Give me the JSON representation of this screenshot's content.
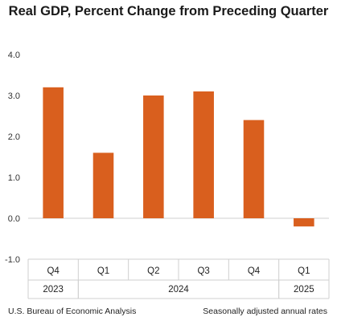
{
  "chart_data": {
    "type": "bar",
    "title": "Real GDP, Percent Change from Preceding Quarter",
    "categories": [
      "Q4",
      "Q1",
      "Q2",
      "Q3",
      "Q4",
      "Q1"
    ],
    "years": [
      {
        "label": "2023",
        "span": [
          0,
          0
        ]
      },
      {
        "label": "2024",
        "span": [
          1,
          4
        ]
      },
      {
        "label": "2025",
        "span": [
          5,
          5
        ]
      }
    ],
    "values": [
      3.2,
      1.6,
      3.0,
      3.1,
      2.4,
      -0.2
    ],
    "ylim": [
      -1.0,
      4.0
    ],
    "yticks": [
      "4.0",
      "3.0",
      "2.0",
      "1.0",
      "0.0",
      "-1.0"
    ],
    "ytick_values": [
      4.0,
      3.0,
      2.0,
      1.0,
      0.0,
      -1.0
    ],
    "xlabel": "",
    "ylabel": "",
    "grid": false,
    "bar_color": "#d95f1e"
  },
  "footer": {
    "source": "U.S. Bureau of Economic Analysis",
    "note": "Seasonally adjusted annual rates"
  }
}
